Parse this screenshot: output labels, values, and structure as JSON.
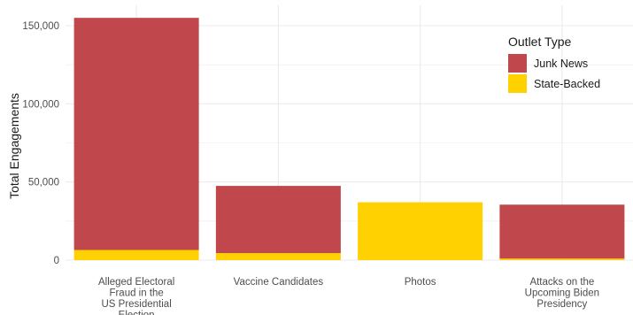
{
  "chart_data": {
    "type": "bar",
    "stacked": true,
    "title": "",
    "xlabel": "",
    "ylabel": "Total Engagements",
    "ylim": [
      0,
      160000
    ],
    "yticks": [
      0,
      50000,
      100000,
      150000
    ],
    "ytick_labels": [
      "0",
      "50,000",
      "100,000",
      "150,000"
    ],
    "categories": [
      "Alleged Electoral Fraud in the US Presidential Election",
      "Vaccine Candidates",
      "Photos",
      "Attacks on the Upcoming Biden Presidency"
    ],
    "category_label_lines": [
      [
        "Alleged Electoral",
        "Fraud in the",
        "US Presidential",
        "Election"
      ],
      [
        "Vaccine Candidates"
      ],
      [
        "Photos"
      ],
      [
        "Attacks on the",
        "Upcoming Biden",
        "Presidency"
      ]
    ],
    "series": [
      {
        "name": "State-Backed",
        "color": "#FFD100",
        "values": [
          6500,
          4500,
          37000,
          1000
        ]
      },
      {
        "name": "Junk News",
        "color": "#C0474B",
        "values": [
          148500,
          43000,
          0,
          34500
        ]
      }
    ],
    "legend": {
      "title": "Outlet Type",
      "position": "top-right",
      "entries": [
        {
          "label": "Junk News",
          "color": "#C0474B"
        },
        {
          "label": "State-Backed",
          "color": "#FFD100"
        }
      ]
    },
    "grid": true,
    "grid_color": "#ebebeb"
  }
}
